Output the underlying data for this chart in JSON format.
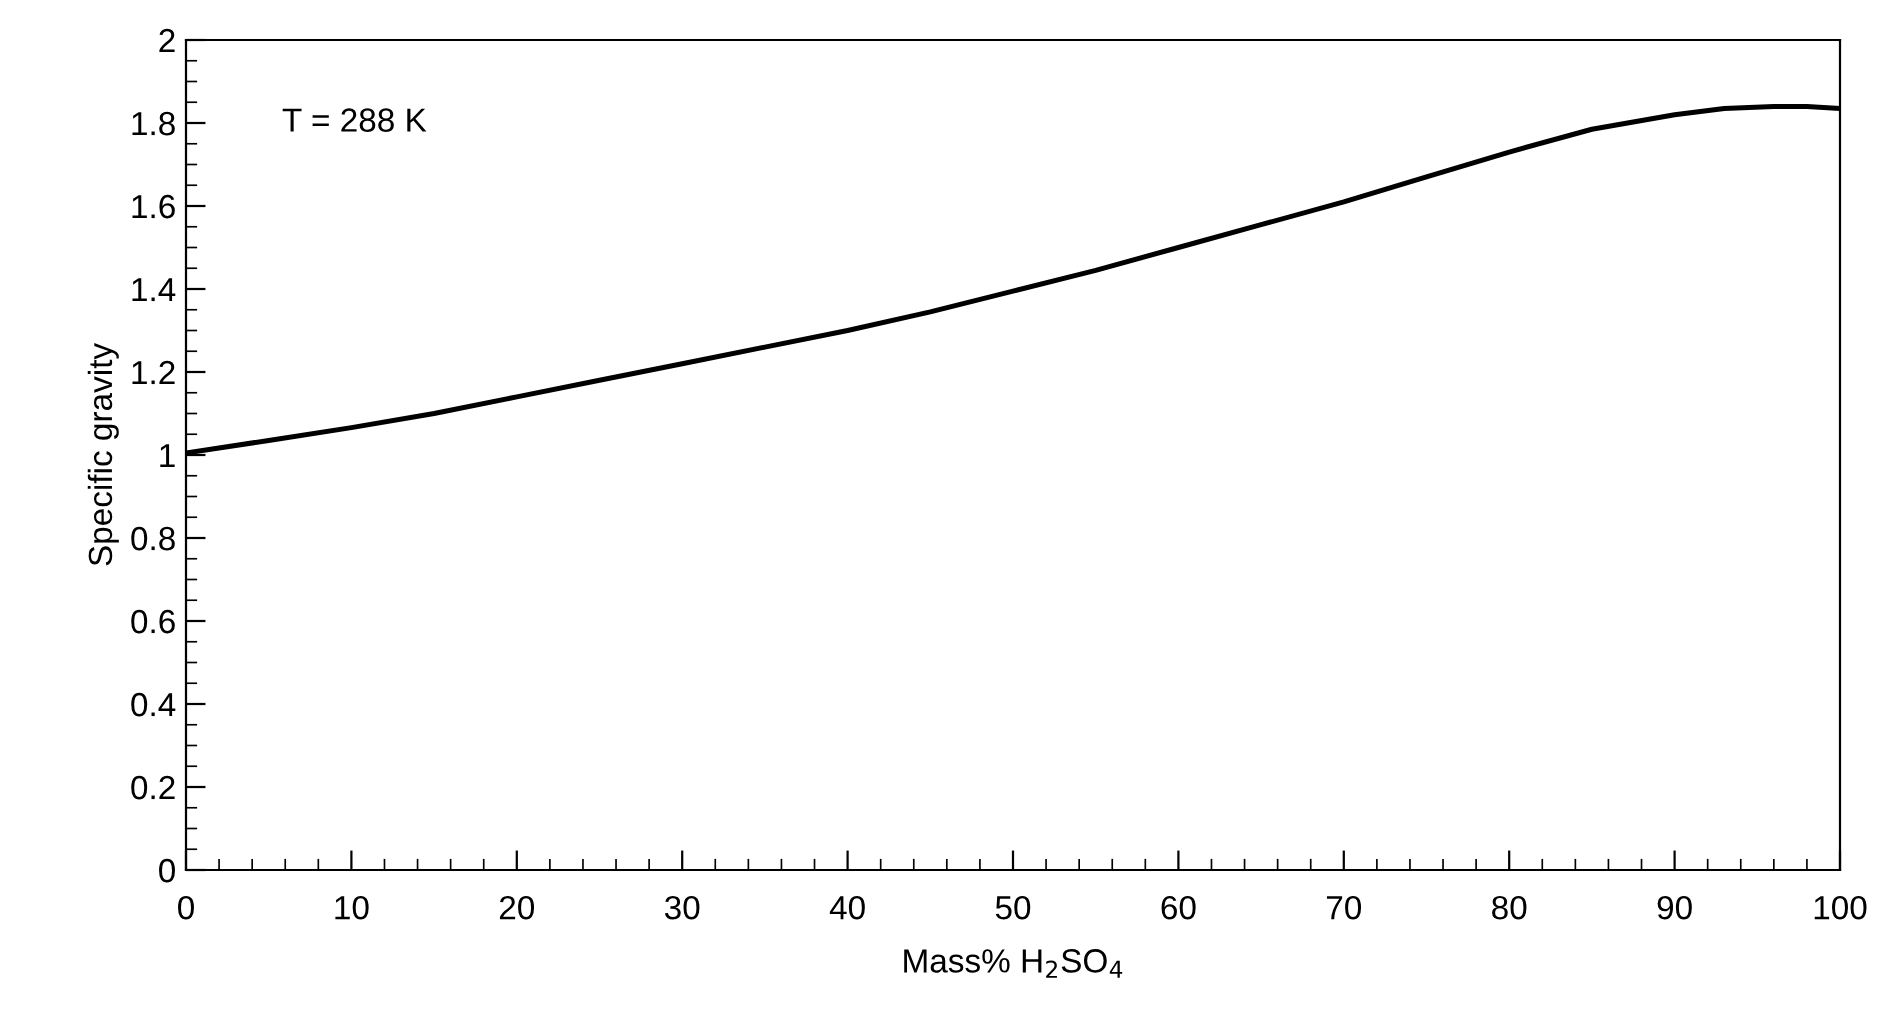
{
  "chart_data": {
    "type": "line",
    "xlabel": "Mass% H$_{2}$SO$_{4}$",
    "ylabel": "Specific gravity",
    "annotations": [
      "T = 288 K"
    ],
    "x": [
      0,
      5,
      10,
      15,
      20,
      25,
      30,
      35,
      40,
      45,
      50,
      55,
      60,
      65,
      70,
      75,
      80,
      85,
      90,
      93,
      96,
      98,
      100
    ],
    "series": [
      {
        "color": "#000000",
        "values": [
          1.005,
          1.035,
          1.066,
          1.1,
          1.14,
          1.18,
          1.22,
          1.26,
          1.3,
          1.345,
          1.395,
          1.445,
          1.5,
          1.555,
          1.61,
          1.67,
          1.73,
          1.785,
          1.82,
          1.835,
          1.84,
          1.84,
          1.835
        ]
      }
    ],
    "xlim": [
      0,
      100
    ],
    "ylim": [
      0,
      2
    ],
    "xticks": [
      0,
      10,
      20,
      30,
      40,
      50,
      60,
      70,
      80,
      90,
      100
    ],
    "yticks": [
      0,
      0.2,
      0.4,
      0.6,
      0.8,
      1,
      1.2,
      1.4,
      1.6,
      1.8,
      2
    ],
    "grid": false,
    "legend": false,
    "marker": "none",
    "line_style": "solid"
  }
}
